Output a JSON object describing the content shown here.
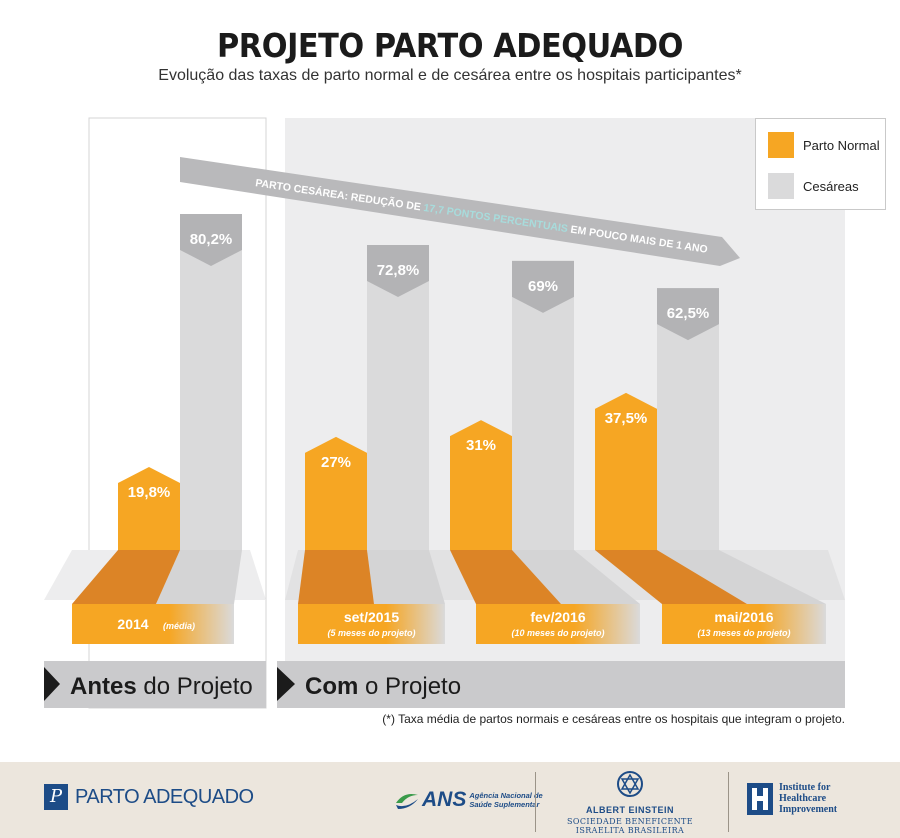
{
  "title": "PROJETO PARTO ADEQUADO",
  "subtitle": "Evolução das taxas de parto normal e de cesárea entre os hospitais participantes*",
  "arrow_text": {
    "before": "PARTO CESÁREA: REDUÇÃO DE ",
    "highlight": "17,7 PONTOS PERCENTUAIS",
    "after": " EM POUCO MAIS DE 1 ANO"
  },
  "legend": {
    "normal": "Parto Normal",
    "cesarea": "Cesáreas"
  },
  "panels": {
    "before": {
      "bold": "Antes",
      "rest": " do Projeto"
    },
    "after": {
      "bold": "Com",
      "rest": " o Projeto"
    }
  },
  "footnote": "(*) Taxa média de partos normais e cesáreas entre os hospitais que integram o projeto.",
  "footer": {
    "parto_adequado": "PARTO ADEQUADO",
    "ans": "ANS",
    "ans_sub1": "Agência Nacional de",
    "ans_sub2": "Saúde Suplementar",
    "albert_einstein": "ALBERT EINSTEIN",
    "albert_einstein_sub": "SOCIEDADE BENEFICENTE ISRAELITA BRASILEIRA",
    "ihi1": "Institute for",
    "ihi2": "Healthcare",
    "ihi3": "Improvement"
  },
  "colors": {
    "normal": "#f6a623",
    "normal_dark": "#dc8426",
    "cesarea": "#dadadb",
    "cesarea_label": "#b3b3b5",
    "panel_bg": "#ededee",
    "band": "#cacacc",
    "footer_bg": "#ece6dd",
    "brand_blue": "#1d4c87",
    "highlight": "#a7dcdc"
  },
  "chart_data": {
    "type": "bar",
    "categories": [
      "2014",
      "set/2015",
      "fev/2016",
      "mai/2016"
    ],
    "category_notes": [
      "(média)",
      "(5 meses do projeto)",
      "(10 meses do projeto)",
      "(13 meses do projeto)"
    ],
    "series": [
      {
        "name": "Parto Normal",
        "values": [
          19.8,
          27,
          31,
          37.5
        ],
        "labels": [
          "19,8%",
          "27%",
          "31%",
          "37,5%"
        ]
      },
      {
        "name": "Cesáreas",
        "values": [
          80.2,
          72.8,
          69,
          62.5
        ],
        "labels": [
          "80,2%",
          "72,8%",
          "69%",
          "62,5%"
        ]
      }
    ],
    "ylim": [
      0,
      100
    ],
    "legend_position": "top-right"
  }
}
